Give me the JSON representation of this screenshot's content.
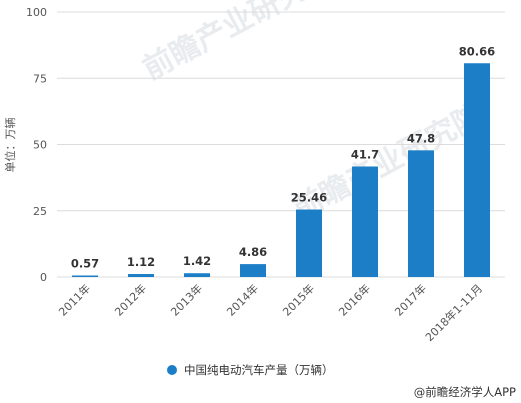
{
  "chart_data": {
    "type": "bar",
    "categories": [
      "2011年",
      "2012年",
      "2013年",
      "2014年",
      "2015年",
      "2016年",
      "2017年",
      "2018年1-11月"
    ],
    "series": [
      {
        "name": "中国纯电动汽车产量（万辆）",
        "values": [
          0.57,
          1.12,
          1.42,
          4.86,
          25.46,
          41.7,
          47.8,
          80.66
        ]
      }
    ],
    "data_labels": [
      "0.57",
      "1.12",
      "1.42",
      "4.86",
      "25.46",
      "41.7",
      "47.8",
      "80.66"
    ],
    "ylabel": "单位：万辆",
    "ylim": [
      0,
      100
    ],
    "yticks": [
      0,
      25,
      50,
      75,
      100
    ],
    "grid": true,
    "legend_position": "bottom-center",
    "colors": {
      "bar": "#1b7ec7",
      "grid": "#dcdcdc"
    }
  },
  "watermark": "前瞻产业研究院",
  "source": "@前瞻经济学人APP"
}
